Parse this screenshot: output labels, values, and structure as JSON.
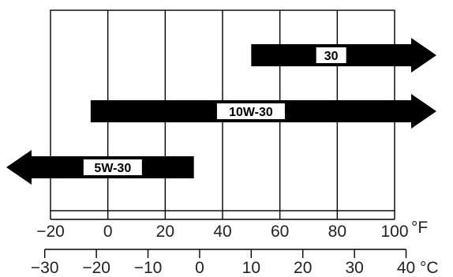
{
  "fahrenheit_axis": {
    "unit": "°F",
    "ticks": [
      "−20",
      "0",
      "20",
      "40",
      "60",
      "80",
      "100"
    ],
    "min": -20,
    "max": 100
  },
  "celsius_axis": {
    "unit": "°C",
    "ticks": [
      "−30",
      "−20",
      "−10",
      "0",
      "10",
      "20",
      "30",
      "40"
    ],
    "min": -30,
    "max": 40
  },
  "oil_ranges": [
    {
      "label": "30",
      "min_f": 50,
      "max_f": null,
      "extends_low": false,
      "extends_high": true
    },
    {
      "label": "10W-30",
      "min_f": -6,
      "max_f": null,
      "extends_low": false,
      "extends_high": true
    },
    {
      "label": "5W-30",
      "min_f": null,
      "max_f": 30,
      "extends_low": true,
      "extends_high": false
    }
  ],
  "colors": {
    "bar": "#000000",
    "grid": "#000000",
    "label_bg": "#ffffff"
  }
}
